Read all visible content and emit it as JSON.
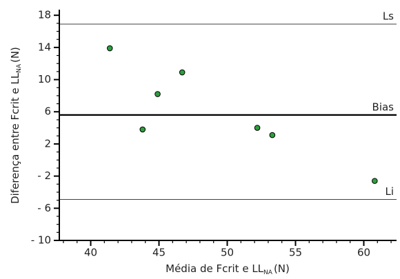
{
  "chart_data": {
    "type": "scatter",
    "x_label": {
      "text": "Média de Fcrit e LL",
      "subscript": "NA",
      "unit": "(N)"
    },
    "y_label": {
      "text": "Diferença entre Fcrit e LL",
      "subscript": "NA",
      "unit": "(N)"
    },
    "series": [
      {
        "color": "#2e9e3e",
        "x": [
          41.4,
          44.9,
          46.7,
          43.8,
          52.2,
          53.3,
          60.8
        ],
        "values": [
          13.9,
          8.2,
          10.9,
          3.8,
          4.0,
          3.1,
          -2.6
        ]
      }
    ],
    "hlines": [
      {
        "value": 16.9,
        "label": "Ls",
        "width": 0.8
      },
      {
        "value": 5.6,
        "label": "Bias",
        "width": 2.2
      },
      {
        "value": -4.9,
        "label": "Li",
        "width": 0.8
      }
    ],
    "xlim": [
      37.7,
      62.4
    ],
    "xticks": [
      40,
      45,
      50,
      55,
      60
    ],
    "ylim": [
      -10,
      18.7
    ],
    "yticks": [
      18,
      14,
      10,
      6,
      2,
      {
        "value": -2,
        "label": "- 2"
      },
      {
        "value": -6,
        "label": "- 6"
      },
      {
        "value": -10,
        "label": "- 10"
      }
    ],
    "minor_xtick_step": 1,
    "minor_ytick_step": 1
  }
}
